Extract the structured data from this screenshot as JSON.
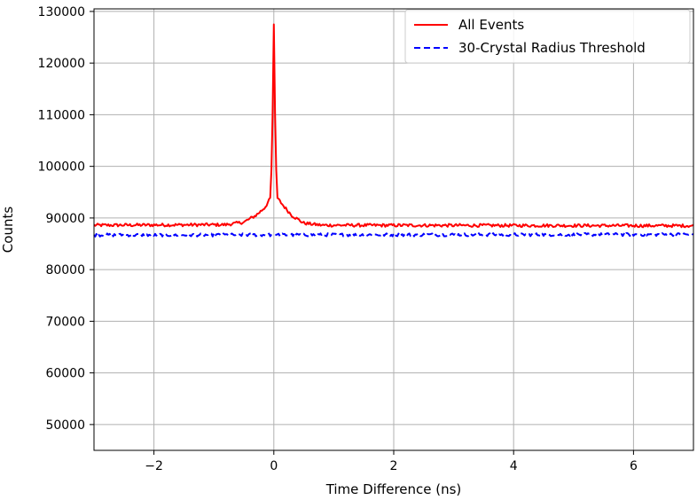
{
  "chart_data": {
    "type": "line",
    "title": "",
    "xlabel": "Time Difference (ns)",
    "ylabel": "Counts",
    "xlim": [
      -3,
      7
    ],
    "ylim": [
      45000,
      130500
    ],
    "xticks": [
      -2,
      0,
      2,
      4,
      6
    ],
    "xtick_labels": [
      "−2",
      "0",
      "2",
      "4",
      "6"
    ],
    "yticks": [
      50000,
      60000,
      70000,
      80000,
      90000,
      100000,
      110000,
      120000,
      130000
    ],
    "ytick_labels": [
      "50000",
      "60000",
      "70000",
      "80000",
      "90000",
      "100000",
      "110000",
      "120000",
      "130000"
    ],
    "grid": true,
    "legend_position": "top-right",
    "series": [
      {
        "name": "All Events",
        "color": "#ff0000",
        "style": "solid",
        "baseline": 88500,
        "noise": 300,
        "x": [
          -3.0,
          -0.8,
          -0.5,
          -0.3,
          -0.15,
          -0.05,
          -0.02,
          0.0,
          0.02,
          0.05,
          0.15,
          0.3,
          0.5,
          0.8,
          7.0
        ],
        "y": [
          88600,
          88700,
          89200,
          90500,
          92000,
          94000,
          110000,
          127500,
          110000,
          94000,
          92500,
          90500,
          89000,
          88600,
          88500
        ]
      },
      {
        "name": "30-Crystal Radius Threshold",
        "color": "#0000ff",
        "style": "dashed",
        "baseline": 86800,
        "noise": 300,
        "x": [
          -3.0,
          7.0
        ],
        "y": [
          86700,
          86800
        ]
      }
    ]
  }
}
